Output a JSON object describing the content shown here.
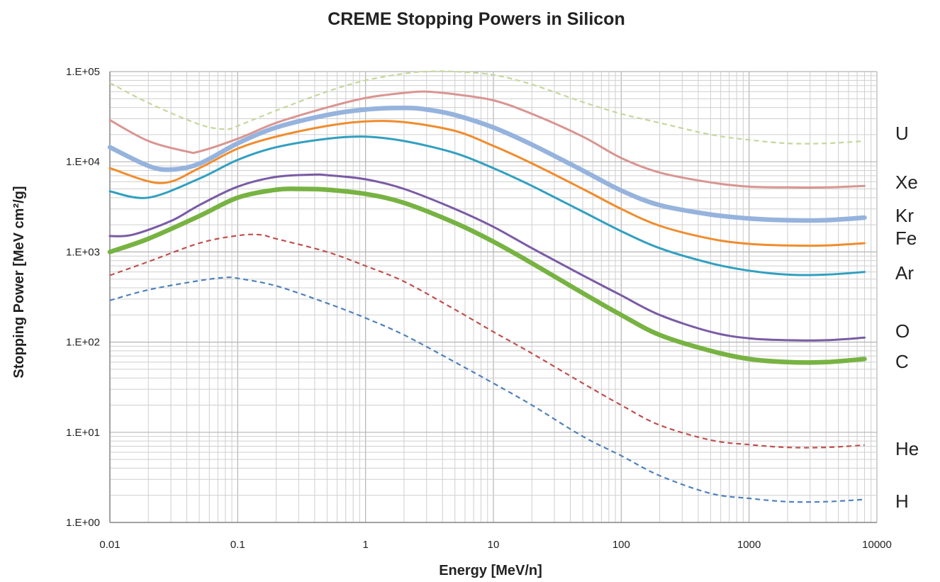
{
  "chart_data": {
    "type": "line",
    "title": "CREME Stopping Powers in Silicon",
    "xlabel": "Energy [MeV/n]",
    "ylabel": "Stopping Power [MeV cm²/g]",
    "x_scale": "log",
    "y_scale": "log",
    "xlim": [
      0.01,
      10000
    ],
    "ylim": [
      1,
      100000
    ],
    "grid": true,
    "x_ticks": [
      "0.01",
      "0.1",
      "1",
      "10",
      "100",
      "1000",
      "10000"
    ],
    "y_ticks": [
      "1.E+00",
      "1.E+01",
      "1.E+02",
      "1.E+03",
      "1.E+04",
      "1.E+05"
    ],
    "series": [
      {
        "name": "H",
        "color": "#4f81bd",
        "style": "dashed",
        "x": [
          0.01,
          0.02,
          0.05,
          0.08,
          0.1,
          0.2,
          0.5,
          1,
          2,
          5,
          10,
          20,
          50,
          100,
          200,
          500,
          1000,
          2000,
          4000,
          8000
        ],
        "y": [
          290,
          380,
          480,
          520,
          510,
          420,
          270,
          185,
          120,
          60,
          35,
          20,
          9,
          5.5,
          3.3,
          2.1,
          1.85,
          1.7,
          1.7,
          1.8
        ]
      },
      {
        "name": "He",
        "color": "#c0504d",
        "style": "dashed",
        "x": [
          0.01,
          0.02,
          0.05,
          0.1,
          0.15,
          0.2,
          0.5,
          1,
          2,
          5,
          10,
          20,
          50,
          100,
          200,
          500,
          1000,
          2000,
          4000,
          8000
        ],
        "y": [
          550,
          780,
          1250,
          1520,
          1550,
          1400,
          1000,
          700,
          470,
          230,
          130,
          75,
          35,
          20,
          12,
          8.2,
          7.3,
          6.8,
          6.8,
          7.2
        ]
      },
      {
        "name": "C",
        "color": "#77b342",
        "style": "thick",
        "x": [
          0.01,
          0.02,
          0.05,
          0.1,
          0.2,
          0.3,
          0.5,
          1,
          2,
          5,
          10,
          20,
          50,
          100,
          200,
          500,
          1000,
          2000,
          4000,
          8000
        ],
        "y": [
          1000,
          1400,
          2500,
          4000,
          4900,
          5000,
          4900,
          4400,
          3500,
          2100,
          1300,
          750,
          350,
          200,
          120,
          80,
          65,
          60,
          60,
          65
        ]
      },
      {
        "name": "O",
        "color": "#7a5ba5",
        "style": "solid",
        "x": [
          0.01,
          0.015,
          0.03,
          0.05,
          0.1,
          0.2,
          0.4,
          0.5,
          1,
          2,
          5,
          10,
          20,
          50,
          100,
          200,
          500,
          1000,
          2000,
          4000,
          8000
        ],
        "y": [
          1500,
          1550,
          2200,
          3300,
          5300,
          6800,
          7200,
          7100,
          6400,
          5000,
          3000,
          1900,
          1100,
          550,
          330,
          200,
          130,
          110,
          105,
          105,
          112
        ]
      },
      {
        "name": "Ar",
        "color": "#31a0c0",
        "style": "solid",
        "x": [
          0.01,
          0.02,
          0.05,
          0.1,
          0.2,
          0.5,
          1,
          2,
          5,
          10,
          20,
          50,
          100,
          200,
          500,
          1000,
          2000,
          4000,
          8000
        ],
        "y": [
          4700,
          4000,
          6500,
          10500,
          14500,
          18000,
          19000,
          17000,
          12500,
          8500,
          5400,
          2800,
          1700,
          1100,
          750,
          620,
          560,
          560,
          600
        ]
      },
      {
        "name": "Fe",
        "color": "#f08c2c",
        "style": "solid",
        "x": [
          0.01,
          0.025,
          0.05,
          0.1,
          0.2,
          0.5,
          1,
          2,
          5,
          10,
          20,
          50,
          100,
          200,
          500,
          1000,
          2000,
          4000,
          8000
        ],
        "y": [
          8500,
          5800,
          8500,
          14000,
          19000,
          25000,
          28000,
          27500,
          22000,
          15000,
          9600,
          5000,
          3000,
          1950,
          1400,
          1230,
          1180,
          1180,
          1250
        ]
      },
      {
        "name": "Kr",
        "color": "#95b3dd",
        "style": "thick",
        "x": [
          0.01,
          0.02,
          0.03,
          0.05,
          0.1,
          0.2,
          0.5,
          1,
          2,
          3,
          5,
          10,
          20,
          50,
          100,
          200,
          500,
          1000,
          2000,
          4000,
          8000
        ],
        "y": [
          14500,
          9000,
          8200,
          9500,
          16000,
          24000,
          33000,
          38000,
          39500,
          38000,
          33000,
          24000,
          15500,
          8000,
          4800,
          3300,
          2600,
          2350,
          2250,
          2250,
          2400
        ]
      },
      {
        "name": "Xe",
        "color": "#d99592",
        "style": "solid",
        "x": [
          0.01,
          0.02,
          0.04,
          0.05,
          0.1,
          0.2,
          0.5,
          1,
          2,
          3,
          5,
          10,
          20,
          50,
          100,
          200,
          500,
          1000,
          2000,
          4000,
          8000
        ],
        "y": [
          29000,
          17000,
          13000,
          13000,
          18000,
          27000,
          40000,
          51000,
          58000,
          60000,
          56000,
          48000,
          34000,
          19000,
          11000,
          7600,
          5900,
          5300,
          5200,
          5200,
          5400
        ]
      },
      {
        "name": "U",
        "color": "#c4d79b",
        "style": "dashed",
        "x": [
          0.01,
          0.02,
          0.05,
          0.08,
          0.1,
          0.2,
          0.5,
          1,
          2,
          3,
          5,
          10,
          20,
          50,
          100,
          200,
          500,
          1000,
          2000,
          4000,
          8000
        ],
        "y": [
          75000,
          45000,
          26000,
          23000,
          25000,
          37000,
          60000,
          80000,
          95000,
          100000,
          100000,
          92000,
          72000,
          46000,
          34000,
          27000,
          20000,
          17500,
          16000,
          16000,
          17000
        ]
      }
    ]
  }
}
